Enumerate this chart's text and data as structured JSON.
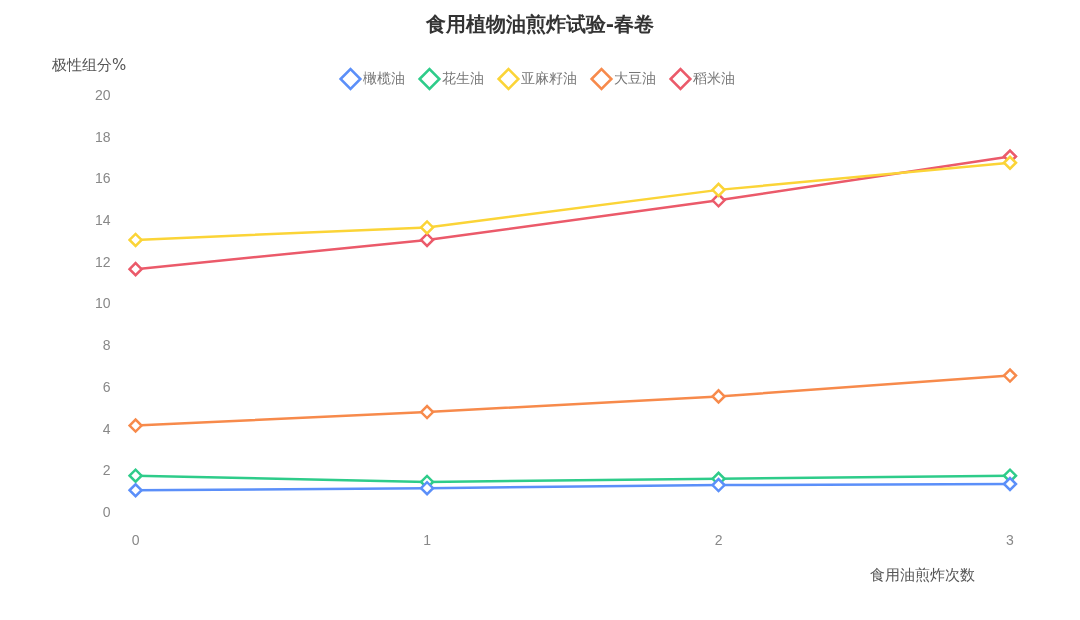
{
  "chart_data": {
    "type": "line",
    "title": "食用植物油煎炸试验-春卷",
    "xlabel": "食用油煎炸次数",
    "ylabel": "极性组分%",
    "categories": [
      "0",
      "1",
      "2",
      "3"
    ],
    "series": [
      {
        "name": "橄榄油",
        "color": "#5b8ff9",
        "values": [
          1.1,
          1.2,
          1.35,
          1.4
        ]
      },
      {
        "name": "花生油",
        "color": "#2ecc8a",
        "values": [
          1.8,
          1.5,
          1.65,
          1.8
        ]
      },
      {
        "name": "亚麻籽油",
        "color": "#fbd437",
        "values": [
          13.1,
          13.7,
          15.5,
          16.8
        ]
      },
      {
        "name": "大豆油",
        "color": "#f78a4b",
        "values": [
          4.2,
          4.85,
          5.6,
          6.6
        ]
      },
      {
        "name": "稻米油",
        "color": "#eb5a6a",
        "values": [
          11.7,
          13.1,
          15.0,
          17.1
        ]
      }
    ],
    "ylim": [
      0,
      20
    ],
    "yticks": [
      0,
      2,
      4,
      6,
      8,
      10,
      12,
      14,
      16,
      18,
      20
    ],
    "grid": false,
    "legend": "top",
    "marker": "diamond",
    "line_style": "solid"
  }
}
